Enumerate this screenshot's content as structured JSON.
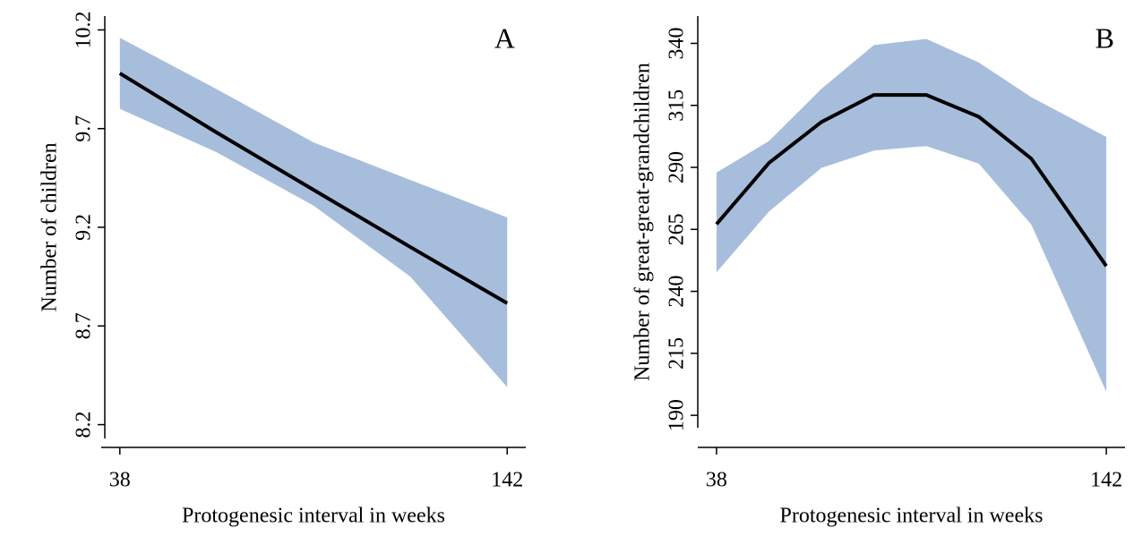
{
  "chart_data": [
    {
      "type": "line",
      "annotation": "A",
      "x_label": "Protogenesic interval in weeks",
      "y_label": "Number of children",
      "x": [
        38,
        64,
        90,
        116,
        142
      ],
      "values": [
        9.98,
        9.68,
        9.39,
        9.1,
        8.815
      ],
      "upper": [
        10.16,
        9.9,
        9.63,
        9.44,
        9.25
      ],
      "lower": [
        9.8,
        9.58,
        9.31,
        8.95,
        8.39
      ],
      "color": "#000000",
      "band_color": "#a7bddc",
      "xlim": [
        33,
        147
      ],
      "xticks": [
        38,
        142
      ],
      "ylim": [
        8.13,
        10.27
      ],
      "yticks": [
        8.2,
        8.7,
        9.2,
        9.7,
        10.2
      ]
    },
    {
      "type": "line",
      "annotation": "B",
      "x_label": "Protogenesic interval in weeks",
      "y_label": "Number of great-great-grandchildren",
      "x": [
        38,
        52,
        66,
        80,
        94,
        108,
        122,
        142
      ],
      "values": [
        267.1,
        291.8,
        308.3,
        319.2,
        319.2,
        310.4,
        293.5,
        250.2
      ],
      "upper": [
        287.9,
        300.6,
        321.7,
        339.3,
        341.8,
        332.3,
        318.3,
        302.3
      ],
      "lower": [
        247.7,
        272.2,
        289.8,
        296.8,
        298.6,
        291.5,
        266.9,
        199.5
      ],
      "color": "#000000",
      "band_color": "#a7bddc",
      "xlim": [
        33,
        147
      ],
      "xticks": [
        38,
        142
      ],
      "ylim": [
        185,
        351
      ],
      "yticks": [
        190,
        215,
        240,
        265,
        290,
        315,
        340
      ]
    }
  ]
}
